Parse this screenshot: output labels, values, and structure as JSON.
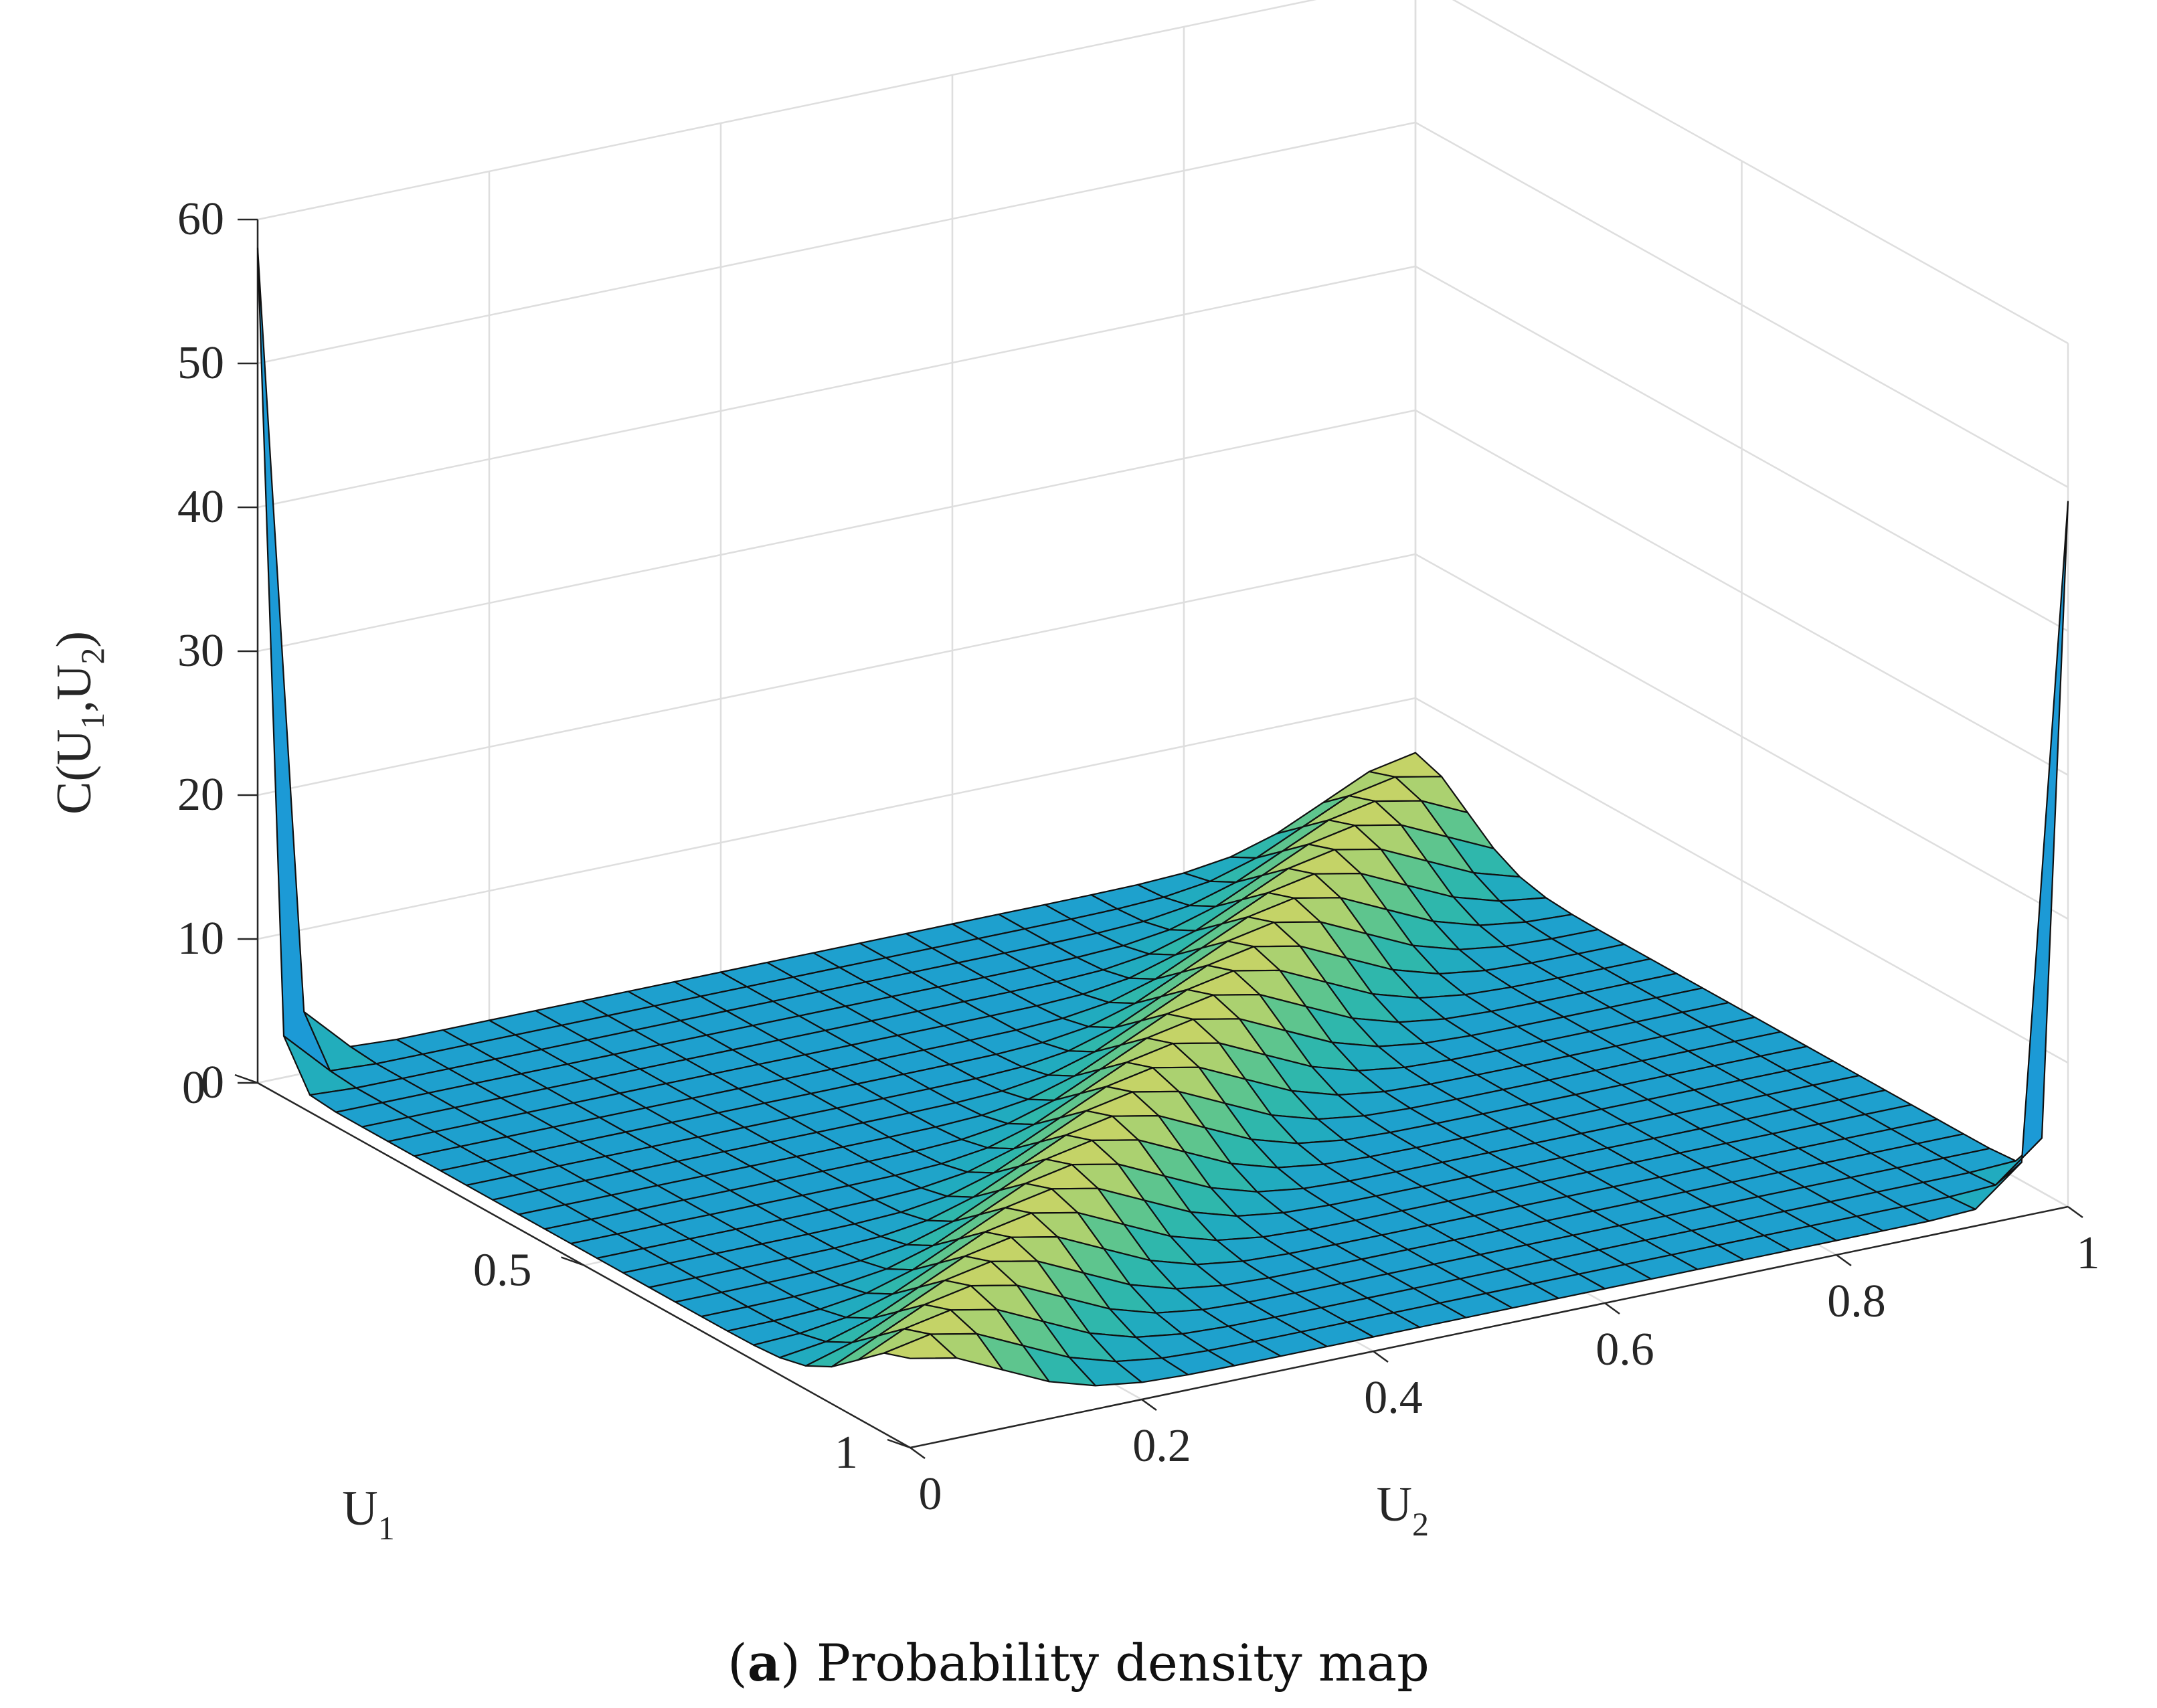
{
  "caption": {
    "open_paren": "(",
    "panel_letter": "a",
    "close_paren": ")",
    "text": "Probability density map"
  },
  "chart_data": {
    "type": "surface3d",
    "title": "",
    "xlabel": {
      "base": "U",
      "sub": "1"
    },
    "ylabel": {
      "base": "U",
      "sub": "2"
    },
    "zlabel": {
      "prefix": "C(U",
      "sub1": "1",
      "mid": ",U",
      "sub2": "2",
      "suffix": ")"
    },
    "xlim": [
      0,
      1
    ],
    "ylim": [
      0,
      1
    ],
    "zlim": [
      0,
      60
    ],
    "x_ticks": [
      "0",
      "0.5",
      "1"
    ],
    "x_tick_values": [
      0,
      0.5,
      1
    ],
    "y_ticks": [
      "0",
      "0.2",
      "0.4",
      "0.6",
      "0.8",
      "1"
    ],
    "y_tick_values": [
      0,
      0.2,
      0.4,
      0.6,
      0.8,
      1
    ],
    "z_ticks": [
      "0",
      "10",
      "20",
      "30",
      "40",
      "50",
      "60"
    ],
    "z_tick_values": [
      0,
      10,
      20,
      30,
      40,
      50,
      60
    ],
    "grid": true,
    "grid_resolution": 25,
    "surface_peaks": {
      "corner_00": 57,
      "corner_11": 48
    },
    "colormap": [
      "#1c9ad6",
      "#23b0b8",
      "#40c09a",
      "#9fd174",
      "#e6d45a"
    ]
  }
}
